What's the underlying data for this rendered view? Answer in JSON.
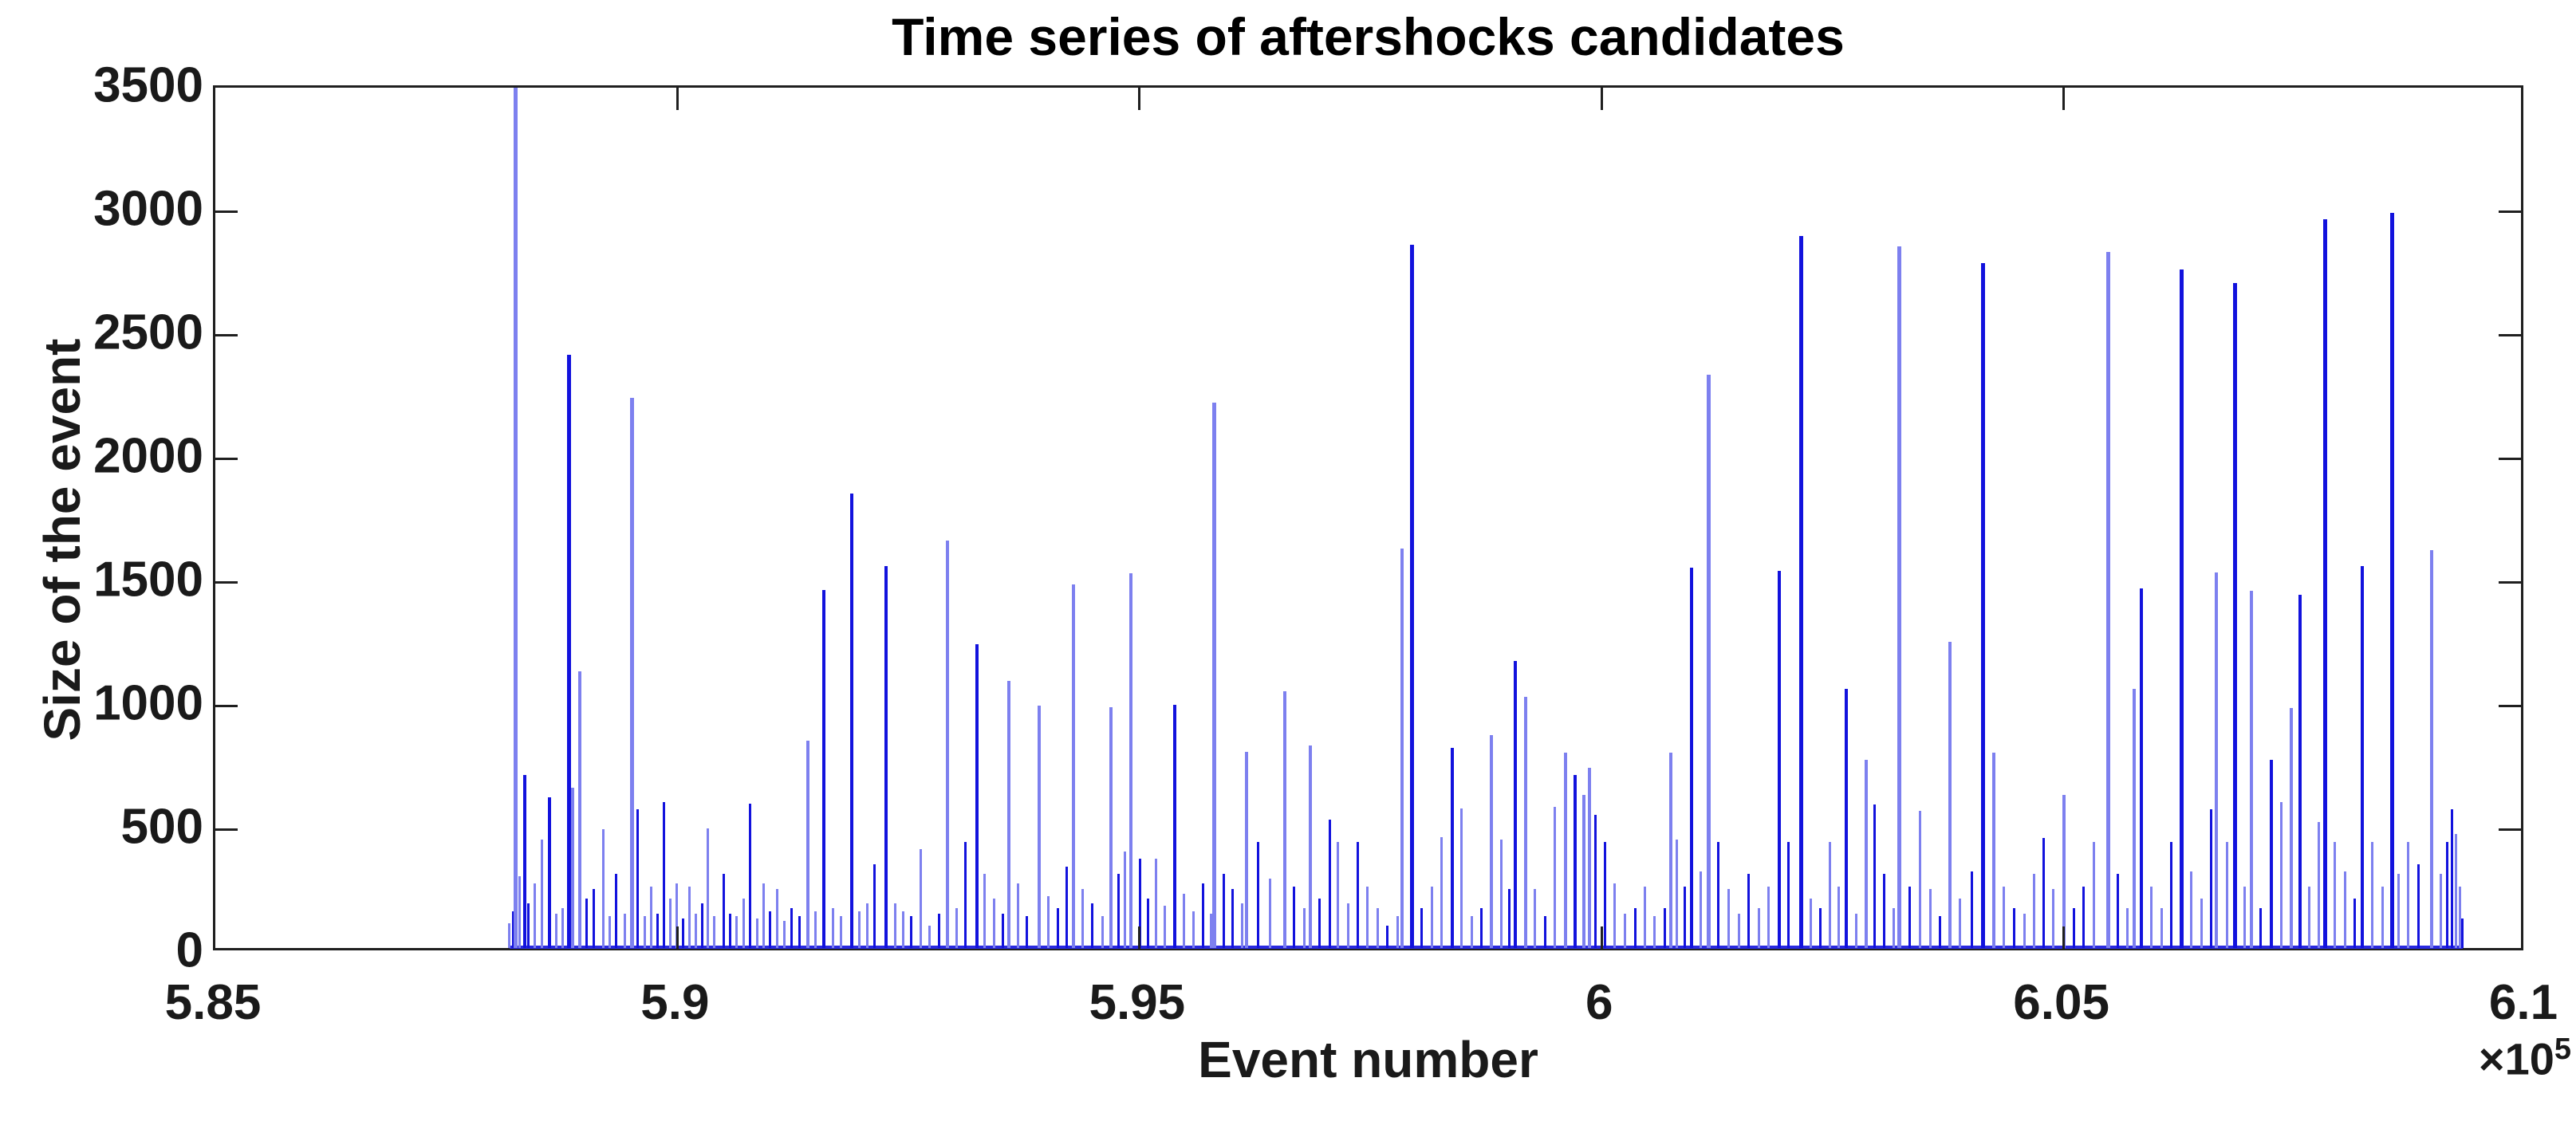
{
  "figure": {
    "title": "Time series of aftershocks candidates",
    "xlabel": "Event number",
    "ylabel": "Size of the event",
    "axis_offset_text": "×10",
    "axis_offset_exponent": "5",
    "colors": {
      "spike_blue": "#1212dd",
      "spike_light_blue": "#7d80ef",
      "axis": "#1f1f1f",
      "text": "#1a1a1a",
      "background": "#ffffff"
    }
  },
  "chart_data": {
    "type": "bar",
    "subtype": "stem-time-series",
    "title": "Time series of aftershocks candidates",
    "xlabel": "Event number",
    "ylabel": "Size of the event",
    "xlim": [
      585000,
      610000
    ],
    "ylim": [
      0,
      3500
    ],
    "x_tick_values": [
      585000,
      590000,
      595000,
      600000,
      605000,
      610000
    ],
    "x_tick_labels": [
      "5.85",
      "5.9",
      "5.95",
      "6",
      "6.05",
      "6.1"
    ],
    "x_offset_label": "×10⁵",
    "y_tick_values": [
      0,
      500,
      1000,
      1500,
      2000,
      2500,
      3000,
      3500
    ],
    "y_tick_labels": [
      "0",
      "500",
      "1000",
      "1500",
      "2000",
      "2500",
      "3000",
      "3500"
    ],
    "grid": false,
    "legend": "none",
    "box": true,
    "tick_direction": "in",
    "baseline_range": [
      588184,
      609320
    ],
    "series_name": "aftershock candidate sizes",
    "points": [
      [
        588184,
        100
      ],
      [
        588219,
        150
      ],
      [
        588245,
        3480
      ],
      [
        588288,
        290
      ],
      [
        588348,
        700
      ],
      [
        588391,
        180
      ],
      [
        588460,
        260
      ],
      [
        588538,
        440
      ],
      [
        588616,
        610
      ],
      [
        588693,
        140
      ],
      [
        588762,
        160
      ],
      [
        588823,
        2400
      ],
      [
        588866,
        650
      ],
      [
        588944,
        1120
      ],
      [
        589021,
        200
      ],
      [
        589099,
        240
      ],
      [
        589194,
        480
      ],
      [
        589271,
        130
      ],
      [
        589340,
        300
      ],
      [
        589427,
        140
      ],
      [
        589513,
        2225
      ],
      [
        589573,
        560
      ],
      [
        589651,
        130
      ],
      [
        589720,
        250
      ],
      [
        589789,
        140
      ],
      [
        589858,
        590
      ],
      [
        589927,
        200
      ],
      [
        589988,
        260
      ],
      [
        590057,
        120
      ],
      [
        590126,
        250
      ],
      [
        590203,
        140
      ],
      [
        590272,
        180
      ],
      [
        590333,
        485
      ],
      [
        590402,
        130
      ],
      [
        590505,
        300
      ],
      [
        590574,
        140
      ],
      [
        590643,
        130
      ],
      [
        590721,
        200
      ],
      [
        590790,
        585
      ],
      [
        590868,
        120
      ],
      [
        590937,
        260
      ],
      [
        591006,
        150
      ],
      [
        591083,
        240
      ],
      [
        591161,
        110
      ],
      [
        591239,
        160
      ],
      [
        591325,
        130
      ],
      [
        591411,
        840
      ],
      [
        591498,
        150
      ],
      [
        591584,
        1450
      ],
      [
        591687,
        160
      ],
      [
        591774,
        130
      ],
      [
        591886,
        1840
      ],
      [
        591972,
        150
      ],
      [
        592058,
        180
      ],
      [
        592136,
        340
      ],
      [
        592257,
        1545
      ],
      [
        592360,
        180
      ],
      [
        592447,
        150
      ],
      [
        592533,
        130
      ],
      [
        592637,
        400
      ],
      [
        592731,
        90
      ],
      [
        592835,
        140
      ],
      [
        592921,
        1650
      ],
      [
        593025,
        160
      ],
      [
        593120,
        430
      ],
      [
        593241,
        1230
      ],
      [
        593327,
        300
      ],
      [
        593430,
        200
      ],
      [
        593525,
        140
      ],
      [
        593586,
        1080
      ],
      [
        593689,
        260
      ],
      [
        593784,
        130
      ],
      [
        593914,
        980
      ],
      [
        594017,
        210
      ],
      [
        594121,
        160
      ],
      [
        594216,
        330
      ],
      [
        594285,
        1470
      ],
      [
        594388,
        240
      ],
      [
        594492,
        180
      ],
      [
        594604,
        130
      ],
      [
        594690,
        975
      ],
      [
        594776,
        300
      ],
      [
        594845,
        390
      ],
      [
        594906,
        1515
      ],
      [
        595009,
        360
      ],
      [
        595096,
        200
      ],
      [
        595182,
        360
      ],
      [
        595277,
        170
      ],
      [
        595381,
        985
      ],
      [
        595484,
        220
      ],
      [
        595588,
        150
      ],
      [
        595691,
        260
      ],
      [
        595777,
        140
      ],
      [
        595812,
        2205
      ],
      [
        595915,
        300
      ],
      [
        596010,
        240
      ],
      [
        596114,
        180
      ],
      [
        596157,
        795
      ],
      [
        596286,
        430
      ],
      [
        596416,
        280
      ],
      [
        596571,
        1040
      ],
      [
        596675,
        250
      ],
      [
        596787,
        160
      ],
      [
        596848,
        820
      ],
      [
        596951,
        200
      ],
      [
        597063,
        520
      ],
      [
        597149,
        430
      ],
      [
        597262,
        180
      ],
      [
        597365,
        430
      ],
      [
        597469,
        250
      ],
      [
        597581,
        160
      ],
      [
        597684,
        90
      ],
      [
        597797,
        130
      ],
      [
        597840,
        1615
      ],
      [
        597952,
        2845
      ],
      [
        598055,
        160
      ],
      [
        598168,
        250
      ],
      [
        598271,
        450
      ],
      [
        598383,
        810
      ],
      [
        598487,
        565
      ],
      [
        598599,
        130
      ],
      [
        598702,
        160
      ],
      [
        598806,
        860
      ],
      [
        598918,
        440
      ],
      [
        599004,
        240
      ],
      [
        599065,
        1160
      ],
      [
        599177,
        1015
      ],
      [
        599280,
        240
      ],
      [
        599392,
        130
      ],
      [
        599496,
        570
      ],
      [
        599608,
        790
      ],
      [
        599712,
        700
      ],
      [
        599807,
        620
      ],
      [
        599867,
        730
      ],
      [
        599936,
        540
      ],
      [
        600040,
        430
      ],
      [
        600143,
        260
      ],
      [
        600255,
        140
      ],
      [
        600367,
        160
      ],
      [
        600471,
        250
      ],
      [
        600575,
        130
      ],
      [
        600687,
        160
      ],
      [
        600747,
        790
      ],
      [
        600816,
        440
      ],
      [
        600902,
        250
      ],
      [
        600971,
        1540
      ],
      [
        601075,
        310
      ],
      [
        601161,
        2320
      ],
      [
        601265,
        430
      ],
      [
        601377,
        240
      ],
      [
        601489,
        140
      ],
      [
        601592,
        300
      ],
      [
        601705,
        160
      ],
      [
        601808,
        250
      ],
      [
        601920,
        1525
      ],
      [
        602024,
        430
      ],
      [
        602162,
        2880
      ],
      [
        602265,
        200
      ],
      [
        602369,
        160
      ],
      [
        602472,
        430
      ],
      [
        602567,
        250
      ],
      [
        602645,
        1050
      ],
      [
        602757,
        140
      ],
      [
        602861,
        760
      ],
      [
        602956,
        580
      ],
      [
        603059,
        300
      ],
      [
        603163,
        160
      ],
      [
        603223,
        2840
      ],
      [
        603335,
        250
      ],
      [
        603447,
        555
      ],
      [
        603559,
        240
      ],
      [
        603663,
        130
      ],
      [
        603766,
        1240
      ],
      [
        603879,
        200
      ],
      [
        604008,
        310
      ],
      [
        604129,
        2770
      ],
      [
        604241,
        790
      ],
      [
        604353,
        250
      ],
      [
        604465,
        160
      ],
      [
        604578,
        140
      ],
      [
        604681,
        300
      ],
      [
        604785,
        445
      ],
      [
        604888,
        240
      ],
      [
        605000,
        620
      ],
      [
        605112,
        160
      ],
      [
        605216,
        250
      ],
      [
        605328,
        430
      ],
      [
        605484,
        2815
      ],
      [
        605587,
        300
      ],
      [
        605691,
        160
      ],
      [
        605760,
        1050
      ],
      [
        605837,
        1455
      ],
      [
        605949,
        250
      ],
      [
        606062,
        160
      ],
      [
        606165,
        430
      ],
      [
        606277,
        2745
      ],
      [
        606381,
        310
      ],
      [
        606493,
        200
      ],
      [
        606596,
        560
      ],
      [
        606648,
        1520
      ],
      [
        606769,
        430
      ],
      [
        606855,
        2690
      ],
      [
        606959,
        250
      ],
      [
        607028,
        1445
      ],
      [
        607131,
        160
      ],
      [
        607243,
        760
      ],
      [
        607356,
        590
      ],
      [
        607459,
        970
      ],
      [
        607554,
        1430
      ],
      [
        607657,
        250
      ],
      [
        607761,
        510
      ],
      [
        607830,
        2950
      ],
      [
        607933,
        430
      ],
      [
        608045,
        310
      ],
      [
        608149,
        200
      ],
      [
        608235,
        1545
      ],
      [
        608339,
        430
      ],
      [
        608451,
        250
      ],
      [
        608554,
        2975
      ],
      [
        608623,
        300
      ],
      [
        608727,
        430
      ],
      [
        608839,
        340
      ],
      [
        608986,
        1610
      ],
      [
        609081,
        300
      ],
      [
        609150,
        430
      ],
      [
        609201,
        560
      ],
      [
        609244,
        460
      ],
      [
        609288,
        250
      ],
      [
        609314,
        120
      ]
    ]
  }
}
